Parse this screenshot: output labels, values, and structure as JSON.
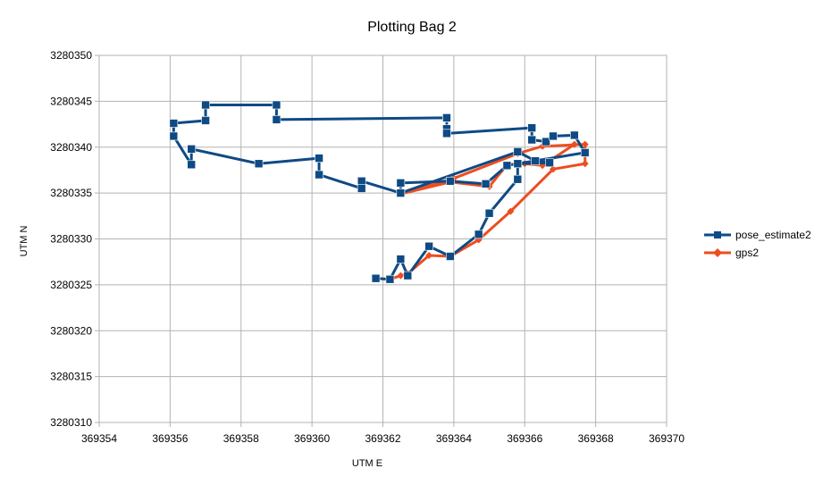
{
  "chart_data": {
    "type": "line",
    "title": "Plotting Bag 2",
    "xlabel": "UTM E",
    "ylabel": "UTM N",
    "xlim": [
      369354,
      369370
    ],
    "ylim": [
      3280310,
      3280350
    ],
    "xticks": [
      369354,
      369356,
      369358,
      369360,
      369362,
      369364,
      369366,
      369368,
      369370
    ],
    "yticks": [
      3280310,
      3280315,
      3280320,
      3280325,
      3280330,
      3280335,
      3280340,
      3280345,
      3280350
    ],
    "grid": true,
    "legend_position": "right",
    "series": [
      {
        "name": "pose_estimate2",
        "color": "#0e4a84",
        "marker": "square",
        "points": [
          [
            369363.8,
            3280343.2
          ],
          [
            369363.8,
            3280342.0
          ],
          [
            369363.8,
            3280341.5
          ],
          [
            369366.2,
            3280342.1
          ],
          [
            369366.2,
            3280340.8
          ],
          [
            369366.6,
            3280340.6
          ],
          [
            369366.8,
            3280341.2
          ],
          [
            369367.4,
            3280341.3
          ],
          [
            369367.7,
            3280339.4
          ],
          [
            369365.8,
            3280338.2
          ],
          [
            369365.5,
            3280338.0
          ],
          [
            369364.9,
            3280336.0
          ],
          [
            369363.9,
            3280336.3
          ],
          [
            369362.5,
            3280336.1
          ],
          [
            369362.5,
            3280335.0
          ],
          [
            369361.4,
            3280336.3
          ],
          [
            369361.4,
            3280335.5
          ],
          [
            369360.2,
            3280337.0
          ],
          [
            369360.2,
            3280338.8
          ],
          [
            369358.5,
            3280338.2
          ],
          [
            369356.6,
            3280339.8
          ],
          [
            369356.6,
            3280338.1
          ],
          [
            369356.1,
            3280341.2
          ],
          [
            369356.1,
            3280342.6
          ],
          [
            369357.0,
            3280342.9
          ],
          [
            369357.0,
            3280344.6
          ],
          [
            369359.0,
            3280344.6
          ],
          [
            369359.0,
            3280343.0
          ],
          [
            369363.8,
            3280343.2
          ]
        ]
      },
      {
        "name": "gps2",
        "color": "#ee4d1f",
        "marker": "diamond",
        "points": [
          [
            369361.8,
            3280325.7
          ],
          [
            369362.2,
            3280325.6
          ],
          [
            369362.5,
            3280326.0
          ],
          [
            369362.7,
            3280326.2
          ],
          [
            369363.3,
            3280328.2
          ],
          [
            369363.9,
            3280328.1
          ],
          [
            369364.7,
            3280329.9
          ],
          [
            369365.6,
            3280333.0
          ],
          [
            369366.8,
            3280337.6
          ],
          [
            369367.7,
            3280338.2
          ],
          [
            369367.7,
            3280340.3
          ],
          [
            369366.5,
            3280340.1
          ],
          [
            369365.8,
            3280339.3
          ],
          [
            369364.0,
            3280336.6
          ],
          [
            369362.5,
            3280334.9
          ],
          [
            369363.9,
            3280336.2
          ],
          [
            369365.0,
            3280335.7
          ],
          [
            369365.5,
            3280338.1
          ],
          [
            369366.0,
            3280338.2
          ],
          [
            369366.5,
            3280338.0
          ],
          [
            369367.4,
            3280340.3
          ]
        ]
      }
    ],
    "pose_tail": [
      [
        369362.5,
        3280335.0
      ],
      [
        369365.8,
        3280339.5
      ],
      [
        369366.3,
        3280338.5
      ],
      [
        369366.7,
        3280338.3
      ],
      [
        369365.8,
        3280338.2
      ],
      [
        369365.8,
        3280336.5
      ],
      [
        369365.0,
        3280332.8
      ],
      [
        369364.7,
        3280330.5
      ],
      [
        369363.9,
        3280328.1
      ],
      [
        369363.3,
        3280329.2
      ],
      [
        369362.7,
        3280326.0
      ],
      [
        369362.5,
        3280327.8
      ],
      [
        369362.2,
        3280325.6
      ],
      [
        369361.8,
        3280325.7
      ]
    ]
  }
}
